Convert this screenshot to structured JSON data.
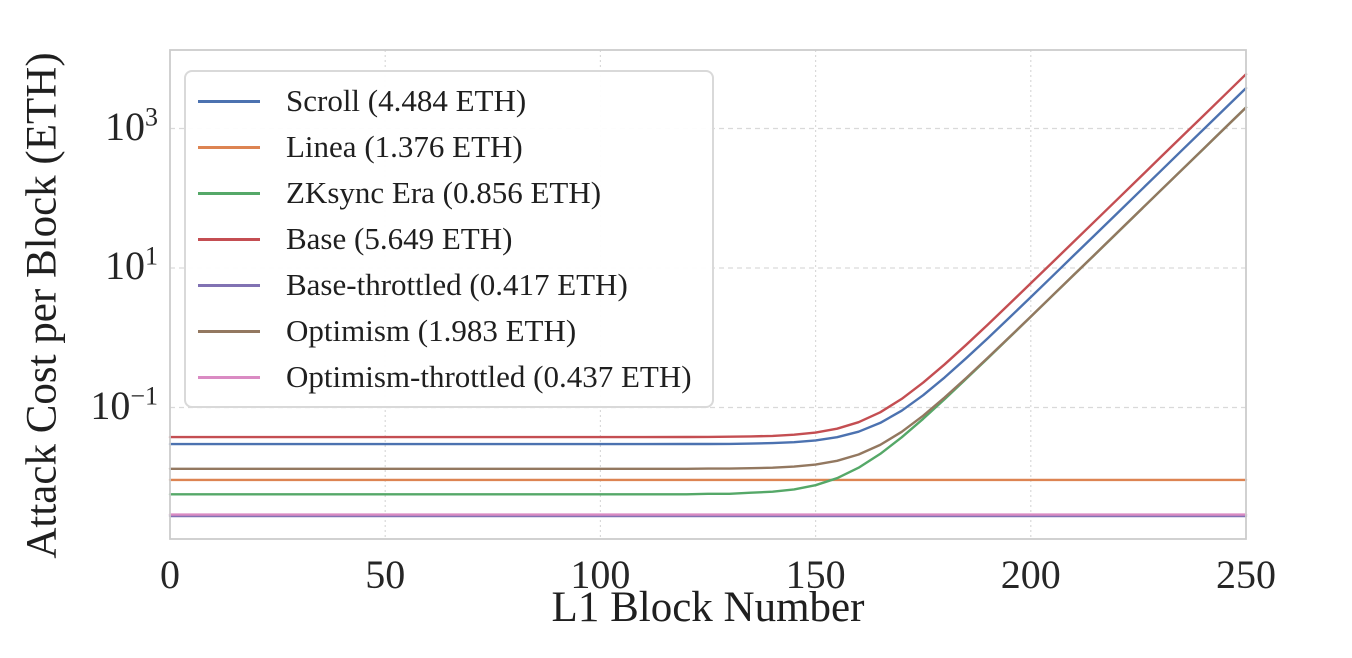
{
  "chart_data": {
    "type": "line",
    "title": "",
    "xlabel": "L1 Block Number",
    "ylabel": "Attack Cost per Block (ETH)",
    "y_scale": "log",
    "grid": true,
    "grid_style": "dashed",
    "legend_position": "upper-left",
    "xlim": [
      0,
      250
    ],
    "ylim": [
      0.0013,
      13000
    ],
    "x_ticks": [
      0,
      50,
      100,
      150,
      200,
      250
    ],
    "y_ticks": [
      {
        "value": 1000,
        "exponent": "3"
      },
      {
        "value": 10,
        "exponent": "1"
      },
      {
        "value": 0.1,
        "exponent": "−1"
      }
    ],
    "colors": {
      "grid": "#d9d9d9",
      "spine": "#cccccc",
      "text": "#262626"
    },
    "x": [
      0,
      10,
      20,
      30,
      40,
      50,
      60,
      70,
      80,
      90,
      100,
      110,
      120,
      125,
      130,
      135,
      140,
      145,
      150,
      155,
      160,
      165,
      170,
      175,
      180,
      185,
      190,
      195,
      200,
      205,
      210,
      215,
      220,
      225,
      230,
      235,
      240,
      245,
      250
    ],
    "series": [
      {
        "name": "scroll",
        "legend_label": "Scroll (4.484 ETH)",
        "color": "#4C72B0",
        "values": [
          0.0299,
          0.0299,
          0.0299,
          0.0299,
          0.0299,
          0.0299,
          0.0299,
          0.0299,
          0.0299,
          0.0299,
          0.0299,
          0.0299,
          0.03,
          0.03,
          0.0301,
          0.0304,
          0.0309,
          0.0318,
          0.0337,
          0.0375,
          0.045,
          0.0601,
          0.0901,
          0.1501,
          0.2697,
          0.5083,
          0.9844,
          1.935,
          3.83,
          7.611,
          15.16,
          30.21,
          60.26,
          120.2,
          239.8,
          478.4,
          954.6,
          1905,
          3800
        ]
      },
      {
        "name": "linea",
        "legend_label": "Linea (1.376 ETH)",
        "color": "#DD8452",
        "values": [
          0.00917,
          0.00917,
          0.00917,
          0.00917,
          0.00917,
          0.00917,
          0.00917,
          0.00917,
          0.00917,
          0.00917,
          0.00917,
          0.00917,
          0.00917,
          0.00917,
          0.00917,
          0.00917,
          0.00917,
          0.00917,
          0.00917,
          0.00917,
          0.00917,
          0.00917,
          0.00917,
          0.00917,
          0.00917,
          0.00917,
          0.00917,
          0.00917,
          0.00917,
          0.00917,
          0.00917,
          0.00917,
          0.00917,
          0.00917,
          0.00917,
          0.00917,
          0.00917,
          0.00917,
          0.00917
        ]
      },
      {
        "name": "zksync-era",
        "legend_label": "ZKsync Era (0.856 ETH)",
        "color": "#55A868",
        "values": [
          0.0057,
          0.0057,
          0.0057,
          0.0057,
          0.0057,
          0.0057,
          0.0057,
          0.0057,
          0.0057,
          0.0057,
          0.0057,
          0.0057,
          0.0057,
          0.0058,
          0.0058,
          0.006,
          0.0062,
          0.0067,
          0.0077,
          0.0097,
          0.0137,
          0.0216,
          0.0374,
          0.0689,
          0.1319,
          0.2575,
          0.5081,
          1.008,
          2.006,
          3.996,
          7.968,
          15.89,
          31.7,
          63.25,
          126.2,
          251.8,
          502.4,
          1002,
          2000
        ]
      },
      {
        "name": "base",
        "legend_label": "Base (5.649 ETH)",
        "color": "#C44E52",
        "values": [
          0.0377,
          0.0377,
          0.0377,
          0.0377,
          0.0377,
          0.0377,
          0.0377,
          0.0377,
          0.0377,
          0.0377,
          0.0377,
          0.0377,
          0.0378,
          0.0379,
          0.0381,
          0.0385,
          0.0392,
          0.0407,
          0.0437,
          0.0497,
          0.0616,
          0.0854,
          0.1328,
          0.2274,
          0.4163,
          0.7931,
          1.545,
          3.045,
          6.038,
          12.01,
          23.92,
          47.7,
          95.13,
          189.7,
          378.6,
          755.4,
          1507,
          3007,
          6000
        ]
      },
      {
        "name": "base-throttled",
        "legend_label": "Base-throttled (0.417 ETH)",
        "color": "#8172B3",
        "values": [
          0.00278,
          0.00278,
          0.00278,
          0.00278,
          0.00278,
          0.00278,
          0.00278,
          0.00278,
          0.00278,
          0.00278,
          0.00278,
          0.00278,
          0.00278,
          0.00278,
          0.00278,
          0.00278,
          0.00278,
          0.00278,
          0.00278,
          0.00278,
          0.00278,
          0.00278,
          0.00278,
          0.00278,
          0.00278,
          0.00278,
          0.00278,
          0.00278,
          0.00278,
          0.00278,
          0.00278,
          0.00278,
          0.00278,
          0.00278,
          0.00278,
          0.00278,
          0.00278,
          0.00278,
          0.00278
        ]
      },
      {
        "name": "optimism",
        "legend_label": "Optimism (1.983 ETH)",
        "color": "#937860",
        "values": [
          0.0132,
          0.0132,
          0.0132,
          0.0132,
          0.0132,
          0.0132,
          0.0132,
          0.0132,
          0.0132,
          0.0132,
          0.0132,
          0.0132,
          0.0132,
          0.0133,
          0.0133,
          0.0135,
          0.0137,
          0.0142,
          0.0152,
          0.0172,
          0.0212,
          0.0291,
          0.0449,
          0.0764,
          0.1394,
          0.265,
          0.5156,
          1.016,
          2.013,
          4.003,
          7.975,
          15.9,
          31.71,
          63.25,
          126.2,
          251.8,
          502.5,
          1002,
          2000
        ]
      },
      {
        "name": "optimism-throttled",
        "legend_label": "Optimism-throttled (0.437 ETH)",
        "color": "#DA8BC3",
        "values": [
          0.00291,
          0.00291,
          0.00291,
          0.00291,
          0.00291,
          0.00291,
          0.00291,
          0.00291,
          0.00291,
          0.00291,
          0.00291,
          0.00291,
          0.00291,
          0.00291,
          0.00291,
          0.00291,
          0.00291,
          0.00291,
          0.00291,
          0.00291,
          0.00291,
          0.00291,
          0.00291,
          0.00291,
          0.00291,
          0.00291,
          0.00291,
          0.00291,
          0.00291,
          0.00291,
          0.00291,
          0.00291,
          0.00291,
          0.00291,
          0.00291,
          0.00291,
          0.00291,
          0.00291,
          0.00291
        ]
      }
    ]
  }
}
